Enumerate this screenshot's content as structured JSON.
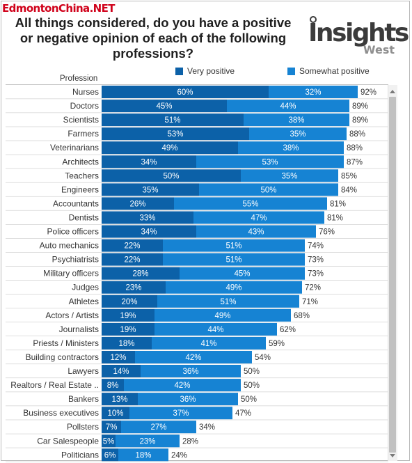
{
  "watermark": "EdmontonChina.NET",
  "title": "All things considered, do you have a positive or negative opinion of each of the following professions?",
  "logo": {
    "word": "Insights",
    "sub": "West"
  },
  "colors": {
    "very": "#0c61a8",
    "somewhat": "#1683d3",
    "grid": "#c8c8c8"
  },
  "chart_data": {
    "type": "bar",
    "orientation": "horizontal",
    "stacked": true,
    "title": "All things considered, do you have a positive or negative opinion of each of the following professions?",
    "ylabel": "Profession",
    "legend_position": "top",
    "xlim": [
      0,
      100
    ],
    "categories": [
      "Nurses",
      "Doctors",
      "Scientists",
      "Farmers",
      "Veterinarians",
      "Architects",
      "Teachers",
      "Engineers",
      "Accountants",
      "Dentists",
      "Police officers",
      "Auto mechanics",
      "Psychiatrists",
      "Military officers",
      "Judges",
      "Athletes",
      "Actors / Artists",
      "Journalists",
      "Priests / Ministers",
      "Building contractors",
      "Lawyers",
      "Realtors / Real Estate ..",
      "Bankers",
      "Business executives",
      "Pollsters",
      "Car Salespeople",
      "Politicians"
    ],
    "series": [
      {
        "name": "Very positive",
        "values": [
          60,
          45,
          51,
          53,
          49,
          34,
          50,
          35,
          26,
          33,
          34,
          22,
          22,
          28,
          23,
          20,
          19,
          19,
          18,
          12,
          14,
          8,
          13,
          10,
          7,
          5,
          6
        ]
      },
      {
        "name": "Somewhat positive",
        "values": [
          32,
          44,
          38,
          35,
          38,
          53,
          35,
          50,
          55,
          47,
          43,
          51,
          51,
          45,
          49,
          51,
          49,
          44,
          41,
          42,
          36,
          42,
          36,
          37,
          27,
          23,
          18
        ]
      }
    ],
    "totals": [
      92,
      89,
      89,
      88,
      88,
      87,
      85,
      84,
      81,
      81,
      76,
      74,
      73,
      73,
      72,
      71,
      68,
      62,
      59,
      54,
      50,
      50,
      50,
      47,
      34,
      28,
      24
    ]
  }
}
